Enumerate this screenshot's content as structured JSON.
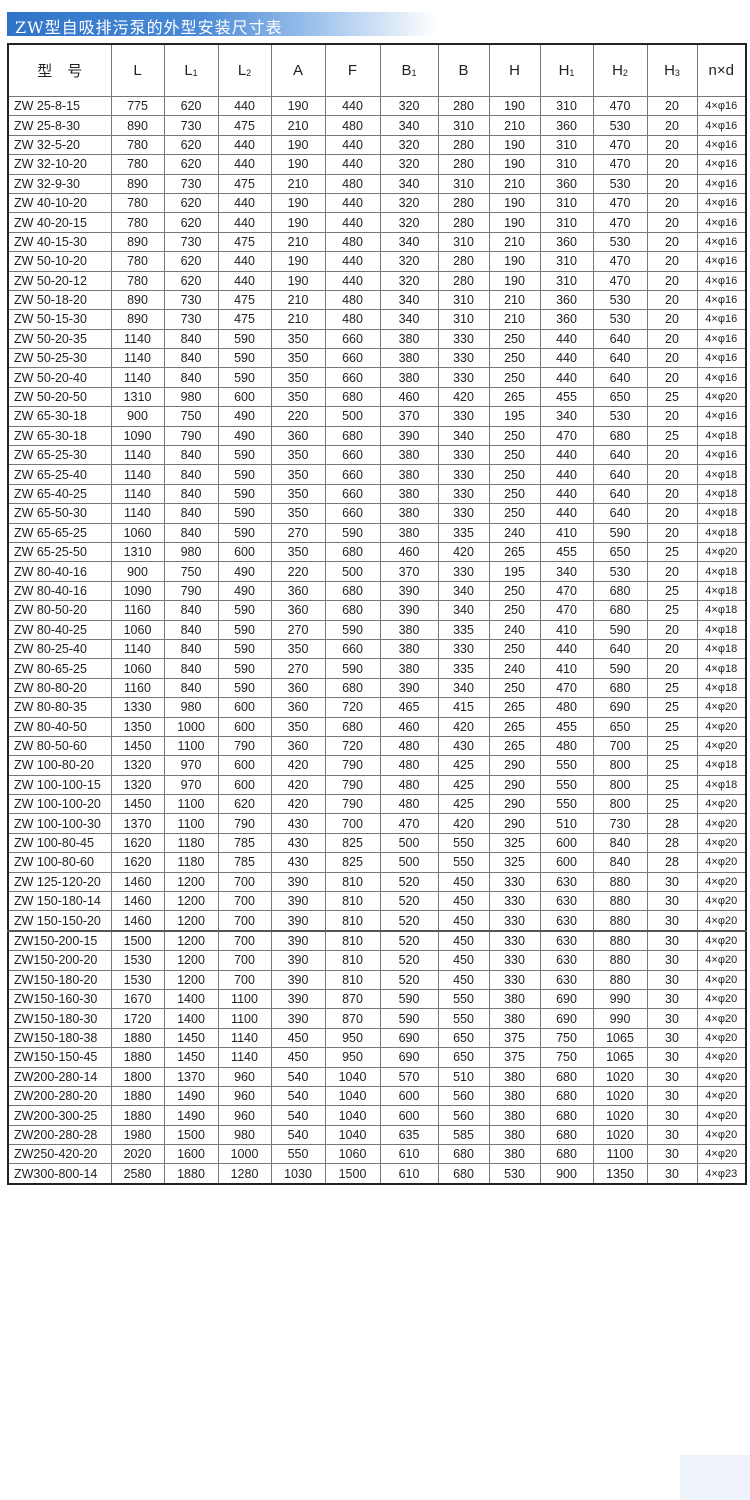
{
  "title": "ZW型自吸排污泵的外型安装尺寸表",
  "colors": {
    "title_bar": "#2f73c8",
    "border": "#222222"
  },
  "table": {
    "headers": [
      {
        "main": "型　号",
        "sub": ""
      },
      {
        "main": "L",
        "sub": ""
      },
      {
        "main": "L",
        "sub": "1"
      },
      {
        "main": "L",
        "sub": "2"
      },
      {
        "main": "A",
        "sub": ""
      },
      {
        "main": "F",
        "sub": ""
      },
      {
        "main": "B",
        "sub": "1"
      },
      {
        "main": "B",
        "sub": ""
      },
      {
        "main": "H",
        "sub": ""
      },
      {
        "main": "H",
        "sub": "1"
      },
      {
        "main": "H",
        "sub": "2"
      },
      {
        "main": "H",
        "sub": "3"
      },
      {
        "main": "n×d",
        "sub": ""
      }
    ],
    "rows": [
      [
        "ZW 25-8-15",
        "775",
        "620",
        "440",
        "190",
        "440",
        "320",
        "280",
        "190",
        "310",
        "470",
        "20",
        "4×φ16"
      ],
      [
        "ZW 25-8-30",
        "890",
        "730",
        "475",
        "210",
        "480",
        "340",
        "310",
        "210",
        "360",
        "530",
        "20",
        "4×φ16"
      ],
      [
        "ZW 32-5-20",
        "780",
        "620",
        "440",
        "190",
        "440",
        "320",
        "280",
        "190",
        "310",
        "470",
        "20",
        "4×φ16"
      ],
      [
        "ZW 32-10-20",
        "780",
        "620",
        "440",
        "190",
        "440",
        "320",
        "280",
        "190",
        "310",
        "470",
        "20",
        "4×φ16"
      ],
      [
        "ZW 32-9-30",
        "890",
        "730",
        "475",
        "210",
        "480",
        "340",
        "310",
        "210",
        "360",
        "530",
        "20",
        "4×φ16"
      ],
      [
        "ZW 40-10-20",
        "780",
        "620",
        "440",
        "190",
        "440",
        "320",
        "280",
        "190",
        "310",
        "470",
        "20",
        "4×φ16"
      ],
      [
        "ZW 40-20-15",
        "780",
        "620",
        "440",
        "190",
        "440",
        "320",
        "280",
        "190",
        "310",
        "470",
        "20",
        "4×φ16"
      ],
      [
        "ZW 40-15-30",
        "890",
        "730",
        "475",
        "210",
        "480",
        "340",
        "310",
        "210",
        "360",
        "530",
        "20",
        "4×φ16"
      ],
      [
        "ZW 50-10-20",
        "780",
        "620",
        "440",
        "190",
        "440",
        "320",
        "280",
        "190",
        "310",
        "470",
        "20",
        "4×φ16"
      ],
      [
        "ZW 50-20-12",
        "780",
        "620",
        "440",
        "190",
        "440",
        "320",
        "280",
        "190",
        "310",
        "470",
        "20",
        "4×φ16"
      ],
      [
        "ZW 50-18-20",
        "890",
        "730",
        "475",
        "210",
        "480",
        "340",
        "310",
        "210",
        "360",
        "530",
        "20",
        "4×φ16"
      ],
      [
        "ZW 50-15-30",
        "890",
        "730",
        "475",
        "210",
        "480",
        "340",
        "310",
        "210",
        "360",
        "530",
        "20",
        "4×φ16"
      ],
      [
        "ZW 50-20-35",
        "1140",
        "840",
        "590",
        "350",
        "660",
        "380",
        "330",
        "250",
        "440",
        "640",
        "20",
        "4×φ16"
      ],
      [
        "ZW 50-25-30",
        "1140",
        "840",
        "590",
        "350",
        "660",
        "380",
        "330",
        "250",
        "440",
        "640",
        "20",
        "4×φ16"
      ],
      [
        "ZW 50-20-40",
        "1140",
        "840",
        "590",
        "350",
        "660",
        "380",
        "330",
        "250",
        "440",
        "640",
        "20",
        "4×φ16"
      ],
      [
        "ZW 50-20-50",
        "1310",
        "980",
        "600",
        "350",
        "680",
        "460",
        "420",
        "265",
        "455",
        "650",
        "25",
        "4×φ20"
      ],
      [
        "ZW 65-30-18",
        "900",
        "750",
        "490",
        "220",
        "500",
        "370",
        "330",
        "195",
        "340",
        "530",
        "20",
        "4×φ16"
      ],
      [
        "ZW 65-30-18",
        "1090",
        "790",
        "490",
        "360",
        "680",
        "390",
        "340",
        "250",
        "470",
        "680",
        "25",
        "4×φ18"
      ],
      [
        "ZW 65-25-30",
        "1140",
        "840",
        "590",
        "350",
        "660",
        "380",
        "330",
        "250",
        "440",
        "640",
        "20",
        "4×φ16"
      ],
      [
        "ZW 65-25-40",
        "1140",
        "840",
        "590",
        "350",
        "660",
        "380",
        "330",
        "250",
        "440",
        "640",
        "20",
        "4×φ18"
      ],
      [
        "ZW 65-40-25",
        "1140",
        "840",
        "590",
        "350",
        "660",
        "380",
        "330",
        "250",
        "440",
        "640",
        "20",
        "4×φ18"
      ],
      [
        "ZW 65-50-30",
        "1140",
        "840",
        "590",
        "350",
        "660",
        "380",
        "330",
        "250",
        "440",
        "640",
        "20",
        "4×φ18"
      ],
      [
        "ZW 65-65-25",
        "1060",
        "840",
        "590",
        "270",
        "590",
        "380",
        "335",
        "240",
        "410",
        "590",
        "20",
        "4×φ18"
      ],
      [
        "ZW 65-25-50",
        "1310",
        "980",
        "600",
        "350",
        "680",
        "460",
        "420",
        "265",
        "455",
        "650",
        "25",
        "4×φ20"
      ],
      [
        "ZW 80-40-16",
        "900",
        "750",
        "490",
        "220",
        "500",
        "370",
        "330",
        "195",
        "340",
        "530",
        "20",
        "4×φ18"
      ],
      [
        "ZW 80-40-16",
        "1090",
        "790",
        "490",
        "360",
        "680",
        "390",
        "340",
        "250",
        "470",
        "680",
        "25",
        "4×φ18"
      ],
      [
        "ZW 80-50-20",
        "1160",
        "840",
        "590",
        "360",
        "680",
        "390",
        "340",
        "250",
        "470",
        "680",
        "25",
        "4×φ18"
      ],
      [
        "ZW 80-40-25",
        "1060",
        "840",
        "590",
        "270",
        "590",
        "380",
        "335",
        "240",
        "410",
        "590",
        "20",
        "4×φ18"
      ],
      [
        "ZW 80-25-40",
        "1140",
        "840",
        "590",
        "350",
        "660",
        "380",
        "330",
        "250",
        "440",
        "640",
        "20",
        "4×φ18"
      ],
      [
        "ZW 80-65-25",
        "1060",
        "840",
        "590",
        "270",
        "590",
        "380",
        "335",
        "240",
        "410",
        "590",
        "20",
        "4×φ18"
      ],
      [
        "ZW 80-80-20",
        "1160",
        "840",
        "590",
        "360",
        "680",
        "390",
        "340",
        "250",
        "470",
        "680",
        "25",
        "4×φ18"
      ],
      [
        "ZW 80-80-35",
        "1330",
        "980",
        "600",
        "360",
        "720",
        "465",
        "415",
        "265",
        "480",
        "690",
        "25",
        "4×φ20"
      ],
      [
        "ZW 80-40-50",
        "1350",
        "1000",
        "600",
        "350",
        "680",
        "460",
        "420",
        "265",
        "455",
        "650",
        "25",
        "4×φ20"
      ],
      [
        "ZW 80-50-60",
        "1450",
        "1100",
        "790",
        "360",
        "720",
        "480",
        "430",
        "265",
        "480",
        "700",
        "25",
        "4×φ20"
      ],
      [
        "ZW 100-80-20",
        "1320",
        "970",
        "600",
        "420",
        "790",
        "480",
        "425",
        "290",
        "550",
        "800",
        "25",
        "4×φ18"
      ],
      [
        "ZW 100-100-15",
        "1320",
        "970",
        "600",
        "420",
        "790",
        "480",
        "425",
        "290",
        "550",
        "800",
        "25",
        "4×φ18"
      ],
      [
        "ZW 100-100-20",
        "1450",
        "1100",
        "620",
        "420",
        "790",
        "480",
        "425",
        "290",
        "550",
        "800",
        "25",
        "4×φ20"
      ],
      [
        "ZW 100-100-30",
        "1370",
        "1100",
        "790",
        "430",
        "700",
        "470",
        "420",
        "290",
        "510",
        "730",
        "28",
        "4×φ20"
      ],
      [
        "ZW 100-80-45",
        "1620",
        "1180",
        "785",
        "430",
        "825",
        "500",
        "550",
        "325",
        "600",
        "840",
        "28",
        "4×φ20"
      ],
      [
        "ZW 100-80-60",
        "1620",
        "1180",
        "785",
        "430",
        "825",
        "500",
        "550",
        "325",
        "600",
        "840",
        "28",
        "4×φ20"
      ],
      [
        "ZW 125-120-20",
        "1460",
        "1200",
        "700",
        "390",
        "810",
        "520",
        "450",
        "330",
        "630",
        "880",
        "30",
        "4×φ20"
      ],
      [
        "ZW 150-180-14",
        "1460",
        "1200",
        "700",
        "390",
        "810",
        "520",
        "450",
        "330",
        "630",
        "880",
        "30",
        "4×φ20"
      ],
      [
        "ZW 150-150-20",
        "1460",
        "1200",
        "700",
        "390",
        "810",
        "520",
        "450",
        "330",
        "630",
        "880",
        "30",
        "4×φ20"
      ],
      [
        "ZW150-200-15",
        "1500",
        "1200",
        "700",
        "390",
        "810",
        "520",
        "450",
        "330",
        "630",
        "880",
        "30",
        "4×φ20"
      ],
      [
        "ZW150-200-20",
        "1530",
        "1200",
        "700",
        "390",
        "810",
        "520",
        "450",
        "330",
        "630",
        "880",
        "30",
        "4×φ20"
      ],
      [
        "ZW150-180-20",
        "1530",
        "1200",
        "700",
        "390",
        "810",
        "520",
        "450",
        "330",
        "630",
        "880",
        "30",
        "4×φ20"
      ],
      [
        "ZW150-160-30",
        "1670",
        "1400",
        "1100",
        "390",
        "870",
        "590",
        "550",
        "380",
        "690",
        "990",
        "30",
        "4×φ20"
      ],
      [
        "ZW150-180-30",
        "1720",
        "1400",
        "1100",
        "390",
        "870",
        "590",
        "550",
        "380",
        "690",
        "990",
        "30",
        "4×φ20"
      ],
      [
        "ZW150-180-38",
        "1880",
        "1450",
        "1140",
        "450",
        "950",
        "690",
        "650",
        "375",
        "750",
        "1065",
        "30",
        "4×φ20"
      ],
      [
        "ZW150-150-45",
        "1880",
        "1450",
        "1140",
        "450",
        "950",
        "690",
        "650",
        "375",
        "750",
        "1065",
        "30",
        "4×φ20"
      ],
      [
        "ZW200-280-14",
        "1800",
        "1370",
        "960",
        "540",
        "1040",
        "570",
        "510",
        "380",
        "680",
        "1020",
        "30",
        "4×φ20"
      ],
      [
        "ZW200-280-20",
        "1880",
        "1490",
        "960",
        "540",
        "1040",
        "600",
        "560",
        "380",
        "680",
        "1020",
        "30",
        "4×φ20"
      ],
      [
        "ZW200-300-25",
        "1880",
        "1490",
        "960",
        "540",
        "1040",
        "600",
        "560",
        "380",
        "680",
        "1020",
        "30",
        "4×φ20"
      ],
      [
        "ZW200-280-28",
        "1980",
        "1500",
        "980",
        "540",
        "1040",
        "635",
        "585",
        "380",
        "680",
        "1020",
        "30",
        "4×φ20"
      ],
      [
        "ZW250-420-20",
        "2020",
        "1600",
        "1000",
        "550",
        "1060",
        "610",
        "680",
        "380",
        "680",
        "1100",
        "30",
        "4×φ20"
      ],
      [
        "ZW300-800-14",
        "2580",
        "1880",
        "1280",
        "1030",
        "1500",
        "610",
        "680",
        "530",
        "900",
        "1350",
        "30",
        "4×φ23"
      ]
    ]
  }
}
